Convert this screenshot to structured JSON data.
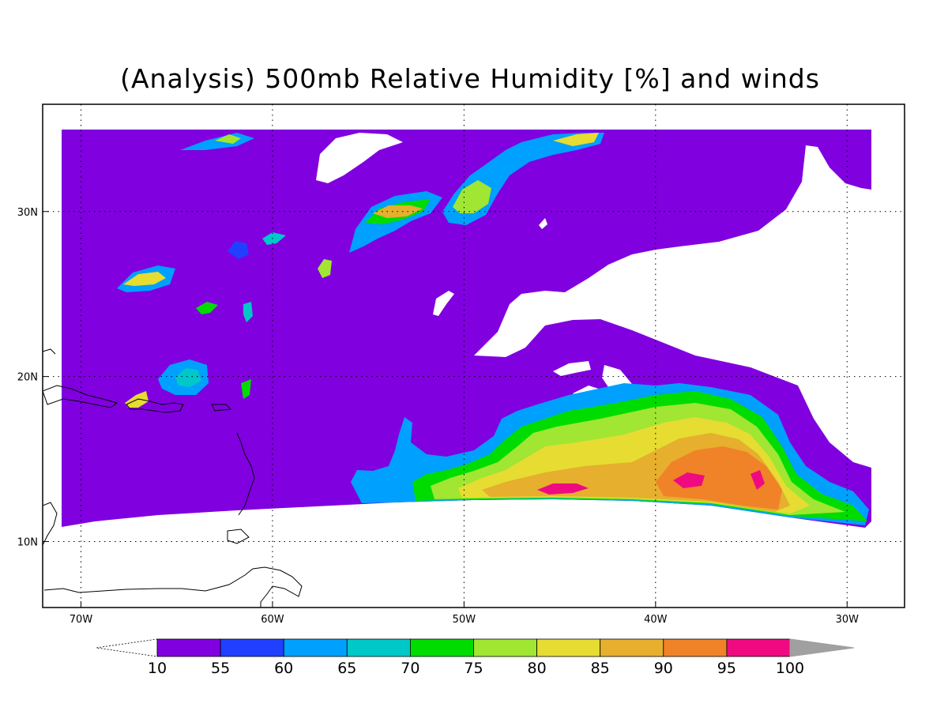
{
  "title": "(Analysis) 500mb Relative Humidity [%] and winds",
  "map": {
    "lat_range": [
      6,
      36.5
    ],
    "lon_range": [
      -72,
      -27
    ],
    "lon_ticks": [
      {
        "value": -70,
        "label": "70W"
      },
      {
        "value": -60,
        "label": "60W"
      },
      {
        "value": -50,
        "label": "50W"
      },
      {
        "value": -40,
        "label": "40W"
      },
      {
        "value": -30,
        "label": "30W"
      }
    ],
    "lat_ticks": [
      {
        "value": 30,
        "label": "30N"
      },
      {
        "value": 20,
        "label": "20N"
      },
      {
        "value": 10,
        "label": "10N"
      }
    ],
    "grid": true,
    "grid_style": "dotted"
  },
  "colorbar": {
    "colors": [
      "#8000e0",
      "#2040ff",
      "#00a0ff",
      "#00c8c8",
      "#00dc00",
      "#a0e632",
      "#e6dc32",
      "#e6af2d",
      "#f08228",
      "#f00a82",
      "#a0a0a0"
    ],
    "labels": [
      "10",
      "55",
      "60",
      "65",
      "70",
      "75",
      "80",
      "85",
      "90",
      "95",
      "100"
    ],
    "lower_extension": "white (below 10)",
    "upper_extension": "gray (above 100)"
  }
}
